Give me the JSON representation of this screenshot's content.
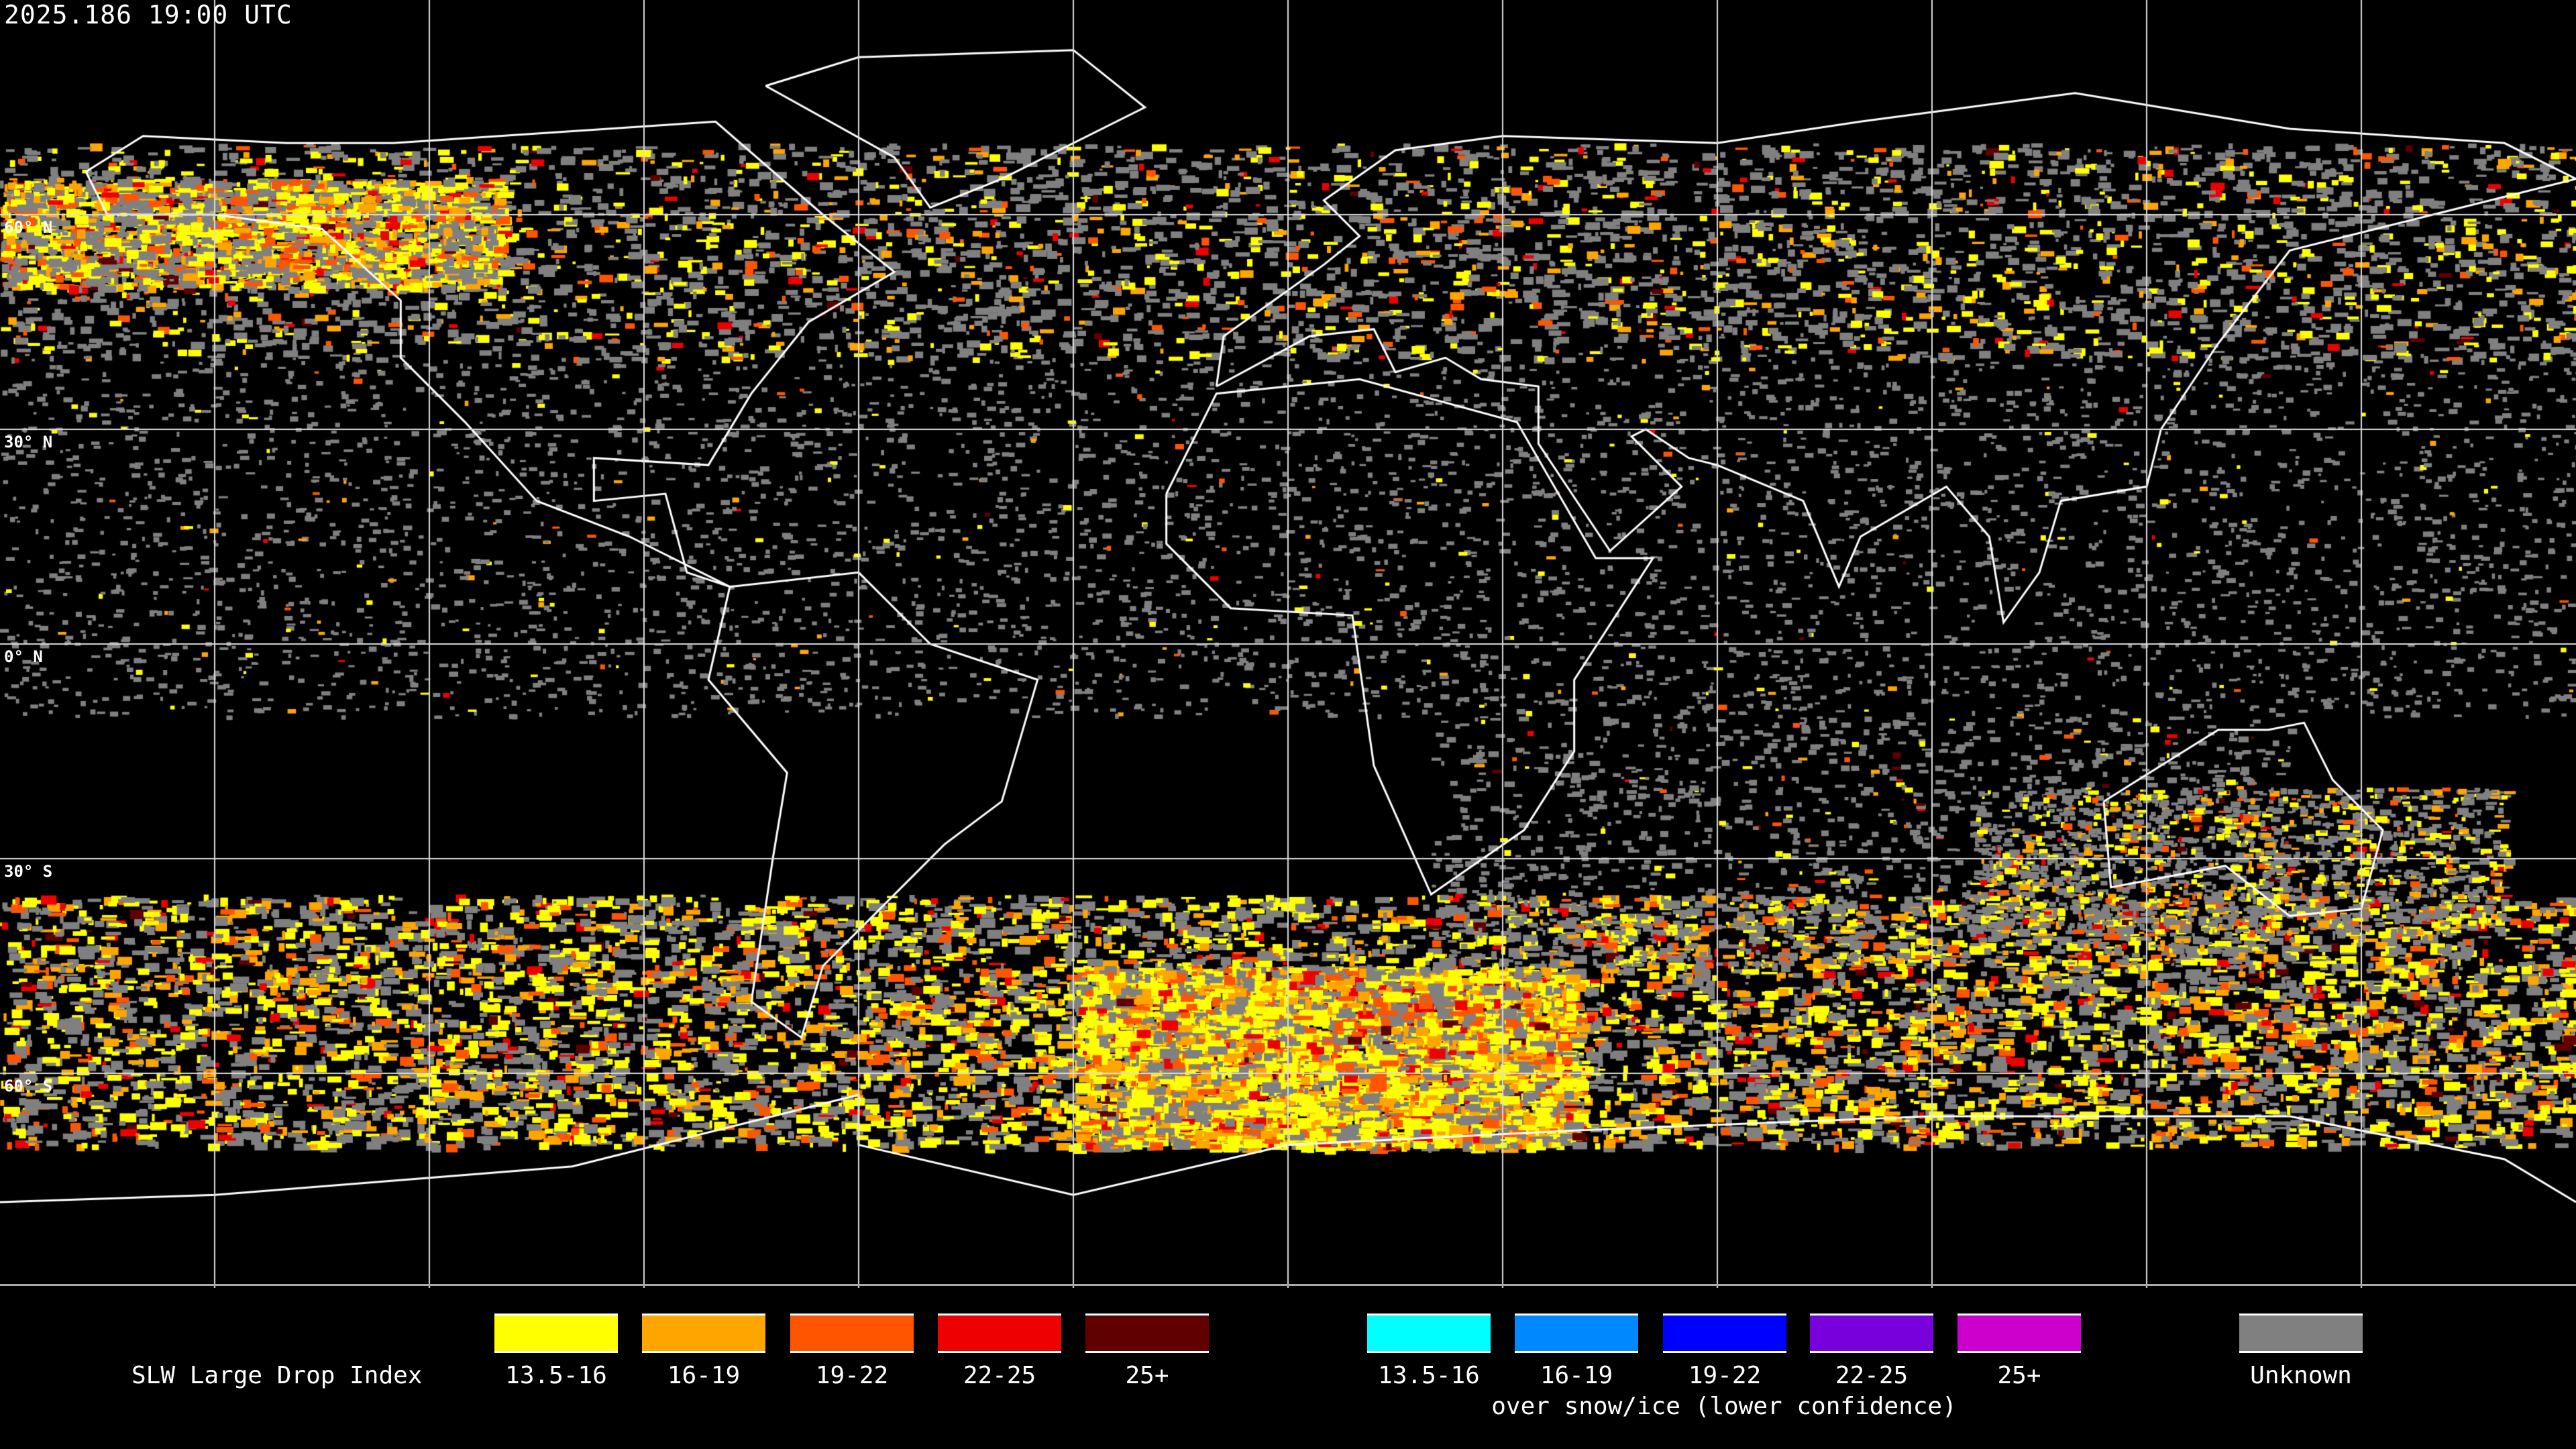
{
  "timestamp": "2025.186 19:00 UTC",
  "lat_labels": [
    "60° N",
    "30° N",
    "0° N",
    "30° S",
    "60° S"
  ],
  "legend": {
    "title": "SLW Large Drop Index",
    "standard": [
      {
        "label": "13.5-16",
        "color": "#ffff00"
      },
      {
        "label": "16-19",
        "color": "#ffa500"
      },
      {
        "label": "19-22",
        "color": "#ff5500"
      },
      {
        "label": "22-25",
        "color": "#ee0000"
      },
      {
        "label": "25+",
        "color": "#600000"
      }
    ],
    "snow_ice": [
      {
        "label": "13.5-16",
        "color": "#00ffff"
      },
      {
        "label": "16-19",
        "color": "#0088ff"
      },
      {
        "label": "19-22",
        "color": "#0000ff"
      },
      {
        "label": "22-25",
        "color": "#7700dd"
      },
      {
        "label": "25+",
        "color": "#cc00cc"
      }
    ],
    "snow_ice_note": "over snow/ice (lower confidence)",
    "unknown": {
      "label": "Unknown",
      "color": "#808080"
    }
  }
}
